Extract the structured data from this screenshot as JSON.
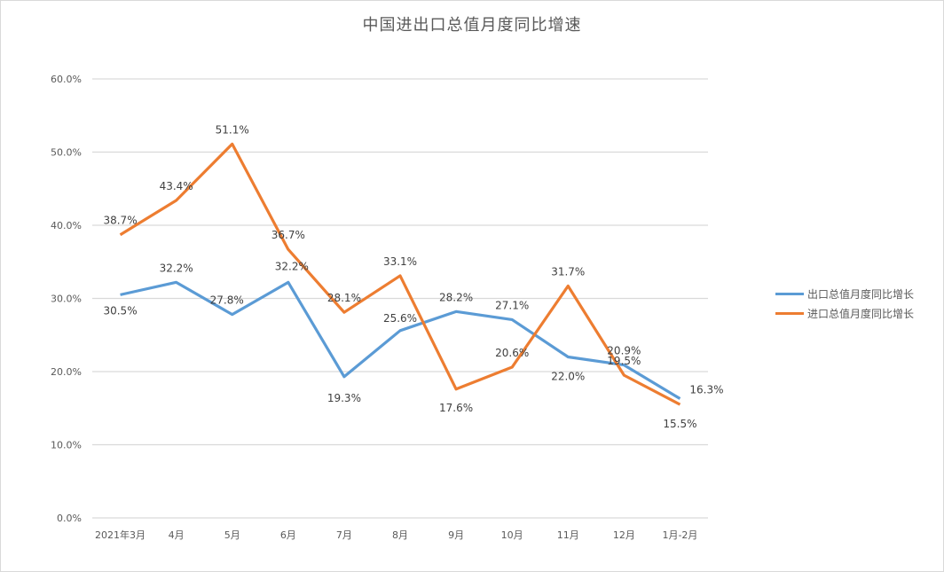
{
  "chart_data": {
    "type": "line",
    "title": "中国进出口总值月度同比增速",
    "xlabel": "",
    "ylabel": "",
    "categories": [
      "2021年3月",
      "4月",
      "5月",
      "6月",
      "7月",
      "8月",
      "9月",
      "10月",
      "11月",
      "12月",
      "1月-2月"
    ],
    "series": [
      {
        "name": "出口总值月度同比增长",
        "color": "#5b9bd5",
        "values": [
          30.5,
          32.2,
          27.8,
          32.2,
          19.3,
          25.6,
          28.2,
          27.1,
          22.0,
          20.9,
          16.3
        ],
        "labels": [
          "30.5%",
          "32.2%",
          "27.8%",
          "32.2%",
          "19.3%",
          "25.6%",
          "28.2%",
          "27.1%",
          "22.0%",
          "20.9%",
          "16.3%"
        ]
      },
      {
        "name": "进口总值月度同比增长",
        "color": "#ed7d31",
        "values": [
          38.7,
          43.4,
          51.1,
          36.7,
          28.1,
          33.1,
          17.6,
          20.6,
          31.7,
          19.5,
          15.5
        ],
        "labels": [
          "38.7%",
          "43.4%",
          "51.1%",
          "36.7%",
          "28.1%",
          "33.1%",
          "17.6%",
          "20.6%",
          "31.7%",
          "19.5%",
          "15.5%"
        ]
      }
    ],
    "yticks": [
      "0.0%",
      "10.0%",
      "20.0%",
      "30.0%",
      "40.0%",
      "50.0%",
      "60.0%"
    ],
    "ylim": [
      0,
      60
    ],
    "grid": true,
    "legend_position": "right"
  }
}
